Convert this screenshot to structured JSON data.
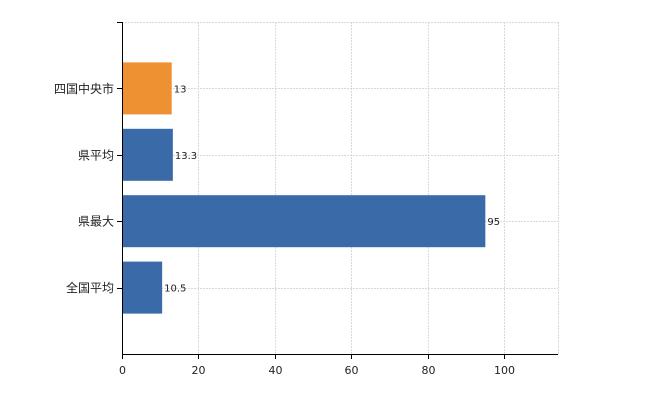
{
  "chart_data": {
    "type": "bar",
    "orientation": "horizontal",
    "categories": [
      "四国中央市",
      "県平均",
      "県最大",
      "全国平均"
    ],
    "values": [
      13,
      13.3,
      95,
      10.5
    ],
    "value_labels": [
      "13",
      "13.3",
      "95",
      "10.5"
    ],
    "bar_colors": [
      "#ee9133",
      "#3a6aa8",
      "#3a6aa8",
      "#3a6aa8"
    ],
    "title": "",
    "xlabel": "",
    "ylabel": "",
    "xlim": [
      0,
      114
    ],
    "x_ticks": [
      0,
      20,
      40,
      60,
      80,
      100
    ],
    "x_tick_labels": [
      "0",
      "20",
      "40",
      "60",
      "80",
      "100"
    ],
    "grid": true,
    "legend": false
  }
}
